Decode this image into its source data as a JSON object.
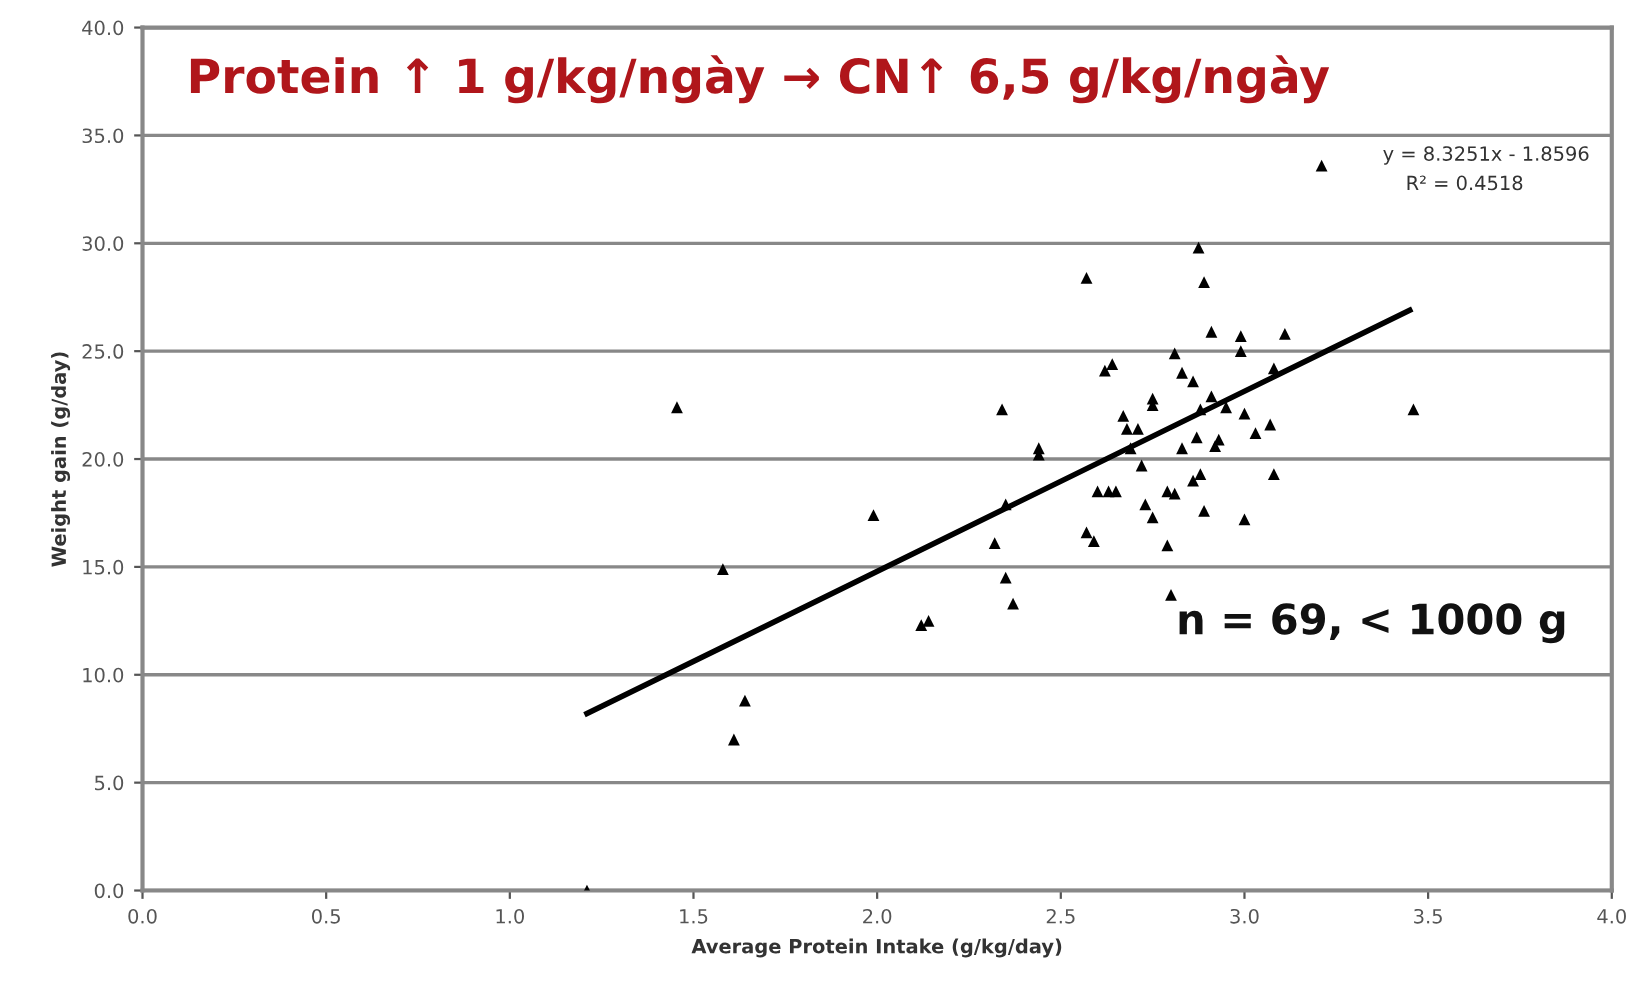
{
  "chart_data": {
    "type": "scatter",
    "title": "Protein ↑ 1 g/kg/ngày → CN↑ 6,5 g/kg/ngày",
    "xlabel": "Average Protein Intake (g/kg/day)",
    "ylabel": "Weight gain (g/day)",
    "annotations": [
      "y = 8.3251x - 1.8596",
      "R² = 0.4518",
      "n = 69, < 1000 g"
    ],
    "xlim": [
      0,
      4
    ],
    "ylim": [
      0,
      40
    ],
    "xticks": [
      {
        "value": 0,
        "label": "0.0"
      },
      {
        "value": 0.5,
        "label": "0.5"
      },
      {
        "value": 1,
        "label": "1.0"
      },
      {
        "value": 1.5,
        "label": "1.5"
      },
      {
        "value": 2,
        "label": "2.0"
      },
      {
        "value": 2.5,
        "label": "2.5"
      },
      {
        "value": 3,
        "label": "3.0"
      },
      {
        "value": 3.5,
        "label": "3.5"
      },
      {
        "value": 4,
        "label": "4.0"
      }
    ],
    "yticks": [
      {
        "value": 0,
        "label": "0.0"
      },
      {
        "value": 5,
        "label": "5.0"
      },
      {
        "value": 10,
        "label": "10.0"
      },
      {
        "value": 15,
        "label": "15.0"
      },
      {
        "value": 20,
        "label": "20.0"
      },
      {
        "value": 25,
        "label": "25.0"
      },
      {
        "value": 30,
        "label": "30.0"
      },
      {
        "value": 35,
        "label": "35.0"
      },
      {
        "value": 40,
        "label": "40.0"
      }
    ],
    "grid": "y",
    "legend": false,
    "marker": "triangle",
    "series": [
      {
        "color": "#000000",
        "x": [
          3.21,
          2.875,
          2.57,
          2.89,
          2.91,
          2.99,
          3.11,
          2.99,
          2.81,
          2.64,
          2.62,
          2.83,
          2.86,
          3.08,
          2.75,
          2.75,
          2.91,
          2.34,
          2.88,
          2.95,
          3.0,
          2.67,
          2.68,
          2.71,
          3.07,
          3.03,
          2.44,
          2.44,
          2.69,
          2.83,
          2.87,
          2.92,
          2.93,
          2.72,
          3.08,
          2.88,
          2.86,
          2.6,
          2.63,
          2.65,
          2.79,
          2.81,
          2.35,
          1.99,
          2.73,
          2.75,
          2.89,
          3.0,
          2.57,
          2.59,
          2.32,
          2.79,
          2.35,
          2.37,
          2.8,
          2.12,
          2.14,
          3.46,
          1.455,
          1.58,
          1.64,
          1.61,
          1.21
        ],
        "values": [
          33.6,
          29.8,
          28.4,
          28.2,
          25.9,
          25.7,
          25.8,
          25.0,
          24.9,
          24.4,
          24.1,
          24.0,
          23.6,
          24.2,
          22.8,
          22.5,
          22.9,
          22.3,
          22.3,
          22.4,
          22.1,
          22.0,
          21.4,
          21.4,
          21.6,
          21.2,
          20.5,
          20.2,
          20.5,
          20.5,
          21.0,
          20.6,
          20.9,
          19.7,
          19.3,
          19.3,
          19.0,
          18.5,
          18.5,
          18.5,
          18.5,
          18.4,
          17.9,
          17.4,
          17.9,
          17.3,
          17.6,
          17.2,
          16.6,
          16.2,
          16.1,
          16.0,
          14.5,
          13.3,
          13.7,
          12.3,
          12.5,
          22.3,
          22.4,
          14.9,
          8.8,
          7.0,
          0.0
        ]
      },
      {
        "type": "line",
        "color": "#000000",
        "marker": "none",
        "line_style": "solid",
        "x": [
          1.21,
          3.45
        ],
        "values": [
          8.2,
          26.9
        ]
      }
    ]
  }
}
